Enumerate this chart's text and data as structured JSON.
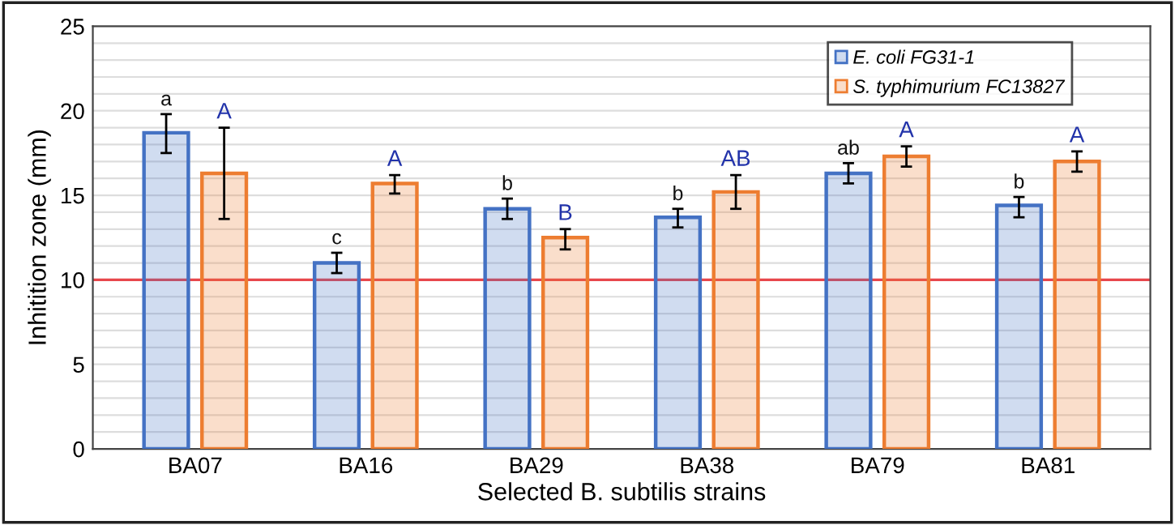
{
  "chart_data": {
    "type": "bar",
    "xlabel": "Selected B. subtilis strains",
    "ylabel": "Inhitition zone (mm)",
    "categories": [
      "BA07",
      "BA16",
      "BA29",
      "BA38",
      "BA79",
      "BA81"
    ],
    "series": [
      {
        "name": "E. coli FG31-1",
        "color": "#4472c4",
        "values": [
          18.7,
          11.0,
          14.2,
          13.7,
          16.3,
          14.4
        ],
        "errors": [
          [
            17.5,
            19.8
          ],
          [
            10.4,
            11.6
          ],
          [
            13.6,
            14.8
          ],
          [
            13.1,
            14.2
          ],
          [
            15.7,
            16.9
          ],
          [
            13.7,
            14.9
          ]
        ]
      },
      {
        "name": "S. typhimurium FC13827",
        "color": "#ed7d31",
        "values": [
          16.3,
          15.7,
          12.5,
          15.2,
          17.3,
          17.0
        ],
        "errors": [
          [
            13.6,
            19.0
          ],
          [
            15.1,
            16.2
          ],
          [
            11.8,
            13.0
          ],
          [
            14.2,
            16.2
          ],
          [
            16.7,
            17.9
          ],
          [
            16.4,
            17.6
          ]
        ]
      }
    ],
    "ylim": [
      0,
      25
    ],
    "yticks": [
      0,
      {
        "value": 1,
        "label": null
      },
      {
        "value": 2,
        "label": null
      },
      {
        "value": 3,
        "label": null
      },
      {
        "value": 4,
        "label": null
      },
      5,
      {
        "value": 6,
        "label": null
      },
      {
        "value": 7,
        "label": null
      },
      {
        "value": 8,
        "label": null
      },
      {
        "value": 9,
        "label": null
      },
      10,
      {
        "value": 11,
        "label": null
      },
      {
        "value": 12,
        "label": null
      },
      {
        "value": 13,
        "label": null
      },
      {
        "value": 14,
        "label": null
      },
      15,
      {
        "value": 16,
        "label": null
      },
      {
        "value": 17,
        "label": null
      },
      {
        "value": 18,
        "label": null
      },
      {
        "value": 19,
        "label": null
      },
      20,
      {
        "value": 21,
        "label": null
      },
      {
        "value": 22,
        "label": null
      },
      {
        "value": 23,
        "label": null
      },
      {
        "value": 24,
        "label": null
      },
      25
    ],
    "grid": "y",
    "legend": "top right",
    "ref_lines": [
      {
        "axis": "y",
        "value": 10,
        "label": null,
        "color": "#e8474c"
      }
    ],
    "annotations": [
      "a",
      "A",
      "c",
      "A",
      "b",
      "B",
      "b",
      "AB",
      "ab",
      "A",
      "b",
      "A"
    ]
  }
}
